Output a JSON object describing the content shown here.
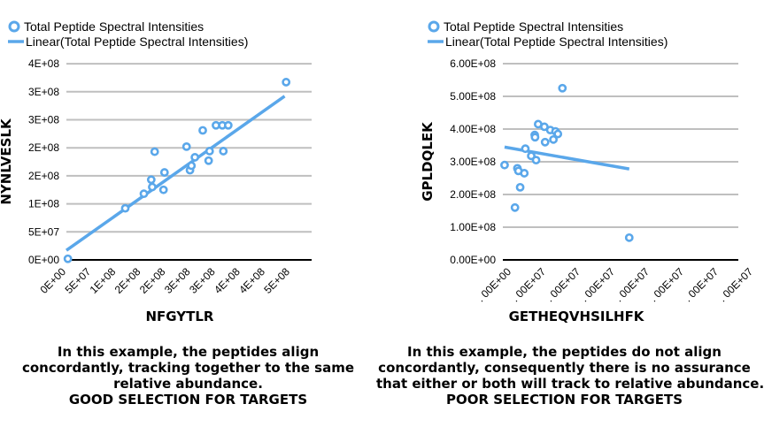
{
  "chart_data": [
    {
      "type": "scatter",
      "legend": [
        "Total Peptide Spectral Intensities",
        "Linear(Total Peptide Spectral Intensities)"
      ],
      "legend_position": "top-left",
      "xlabel": "NFGYTLR",
      "ylabel": "NYNLVESLK",
      "xlim": [
        0,
        500000000
      ],
      "ylim": [
        0,
        350000000
      ],
      "x_ticks": [
        "0E+00",
        "5E+07",
        "1E+08",
        "2E+08",
        "2E+08",
        "3E+08",
        "3E+08",
        "4E+08",
        "4E+08",
        "5E+08"
      ],
      "y_ticks": [
        "0E+00",
        "5E+07",
        "1E+08",
        "2E+08",
        "2E+08",
        "3E+08",
        "3E+08",
        "4E+08"
      ],
      "grid": "horizontal",
      "points": [
        {
          "x": 3000000,
          "y": 2000000
        },
        {
          "x": 120000000,
          "y": 92000000
        },
        {
          "x": 158000000,
          "y": 118000000
        },
        {
          "x": 175000000,
          "y": 130000000
        },
        {
          "x": 173000000,
          "y": 143000000
        },
        {
          "x": 180000000,
          "y": 193000000
        },
        {
          "x": 198000000,
          "y": 125000000
        },
        {
          "x": 200000000,
          "y": 156000000
        },
        {
          "x": 245000000,
          "y": 202000000
        },
        {
          "x": 252000000,
          "y": 160000000
        },
        {
          "x": 255000000,
          "y": 168000000
        },
        {
          "x": 262000000,
          "y": 183000000
        },
        {
          "x": 278000000,
          "y": 231000000
        },
        {
          "x": 290000000,
          "y": 177000000
        },
        {
          "x": 292000000,
          "y": 194000000
        },
        {
          "x": 305000000,
          "y": 240000000
        },
        {
          "x": 318000000,
          "y": 240000000
        },
        {
          "x": 320000000,
          "y": 194000000
        },
        {
          "x": 330000000,
          "y": 240000000
        },
        {
          "x": 448000000,
          "y": 317000000
        }
      ],
      "trendline": {
        "x": [
          0,
          445000000
        ],
        "y": [
          17000000,
          292000000
        ]
      }
    },
    {
      "type": "scatter",
      "legend": [
        "Total Peptide Spectral Intensities",
        "Linear(Total Peptide Spectral Intensities)"
      ],
      "legend_position": "top-left",
      "xlabel": "GETHEQVHSILHFK",
      "ylabel": "GPLDQLEK",
      "ylim": [
        0,
        600000000
      ],
      "x_ticks": [
        ". 00E+00",
        ". 00E+07",
        ". 00E+07",
        ". 00E+07",
        ". 00E+07",
        ". 00E+07",
        ". 00E+07",
        ". 00E+07"
      ],
      "y_ticks": [
        "0.00E+00",
        "1.00E+08",
        "2.00E+08",
        "3.00E+08",
        "4.00E+08",
        "5.00E+08",
        "6.00E+08"
      ],
      "grid": "horizontal",
      "points": [
        {
          "x": 0.05,
          "y": 290000000
        },
        {
          "x": 0.35,
          "y": 160000000
        },
        {
          "x": 0.42,
          "y": 280000000
        },
        {
          "x": 0.45,
          "y": 272000000
        },
        {
          "x": 0.5,
          "y": 222000000
        },
        {
          "x": 0.62,
          "y": 265000000
        },
        {
          "x": 0.65,
          "y": 340000000
        },
        {
          "x": 0.82,
          "y": 318000000
        },
        {
          "x": 0.92,
          "y": 382000000
        },
        {
          "x": 0.93,
          "y": 375000000
        },
        {
          "x": 0.96,
          "y": 305000000
        },
        {
          "x": 1.02,
          "y": 415000000
        },
        {
          "x": 1.2,
          "y": 407000000
        },
        {
          "x": 1.22,
          "y": 360000000
        },
        {
          "x": 1.37,
          "y": 397000000
        },
        {
          "x": 1.46,
          "y": 368000000
        },
        {
          "x": 1.52,
          "y": 393000000
        },
        {
          "x": 1.59,
          "y": 385000000
        },
        {
          "x": 1.72,
          "y": 525000000
        },
        {
          "x": 3.65,
          "y": 68000000
        }
      ],
      "trendline": {
        "x": [
          0.05,
          3.65
        ],
        "y": [
          345000000,
          278000000
        ]
      }
    }
  ],
  "captions": {
    "left": [
      "In this example, the peptides align",
      "concordantly, tracking together to the same",
      "relative abundance.",
      "GOOD SELECTION FOR TARGETS"
    ],
    "right": [
      "In this example, the peptides do not align",
      "concordantly, consequently there is no assurance",
      "that either or both will track to relative abundance.",
      "POOR SELECTION FOR TARGETS"
    ]
  },
  "colors": {
    "series": "#5aa7ea",
    "grid": "#bfbfbf",
    "axis": "#000000"
  }
}
